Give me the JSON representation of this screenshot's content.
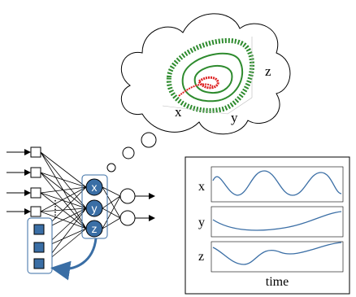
{
  "thought_bubble": {
    "axis_labels": {
      "x": "x",
      "y": "y",
      "z": "z"
    }
  },
  "network": {
    "hidden_nodes": [
      "x",
      "y",
      "z"
    ]
  },
  "time_series": {
    "panel_labels": [
      "x",
      "y",
      "z"
    ],
    "xlabel": "time"
  }
}
